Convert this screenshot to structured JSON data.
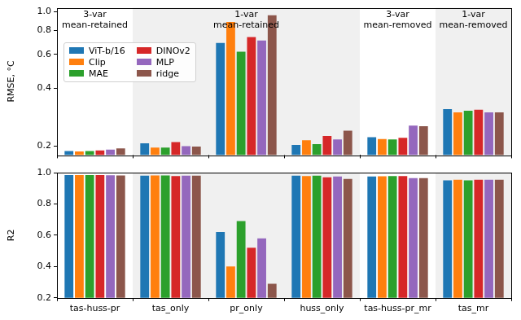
{
  "chart_data": [
    {
      "type": "bar",
      "y_label": "RMSE, °C",
      "categories": [
        "tas-huss-pr",
        "tas_only",
        "pr_only",
        "huss_only",
        "tas-huss-pr_mr",
        "tas_mr"
      ],
      "series": [
        {
          "name": "ViT-b/16",
          "color": "#1f77b4",
          "values": [
            0.189,
            0.207,
            0.69,
            0.203,
            0.223,
            0.312
          ]
        },
        {
          "name": "Clip",
          "color": "#ff7f0e",
          "values": [
            0.188,
            0.197,
            0.886,
            0.215,
            0.218,
            0.3
          ]
        },
        {
          "name": "MAE",
          "color": "#2ca02c",
          "values": [
            0.189,
            0.197,
            0.62,
            0.205,
            0.217,
            0.306
          ]
        },
        {
          "name": "DINOv2",
          "color": "#d62728",
          "values": [
            0.19,
            0.21,
            0.74,
            0.226,
            0.221,
            0.31
          ]
        },
        {
          "name": "MLP",
          "color": "#9467bd",
          "values": [
            0.192,
            0.2,
            0.71,
            0.217,
            0.256,
            0.3
          ]
        },
        {
          "name": "ridge",
          "color": "#8c564b",
          "values": [
            0.195,
            0.199,
            0.96,
            0.241,
            0.254,
            0.3
          ]
        }
      ],
      "log": "y",
      "ylim": [
        0.18,
        1.05
      ],
      "yticks": [
        0.2,
        0.4,
        0.6,
        0.8,
        {
          "value": 1,
          "label": "1.0"
        }
      ],
      "grid": false,
      "legend": "upper left",
      "tick_labels": "y",
      "annotations": [
        {
          "text": "3-var\nmean-retained",
          "categories": [
            "tas-huss-pr"
          ]
        },
        {
          "text": "1-var\nmean-retained",
          "categories": [
            "tas_only",
            "pr_only",
            "huss_only"
          ]
        },
        {
          "text": "3-var\nmean-removed",
          "categories": [
            "tas-huss-pr_mr"
          ]
        },
        {
          "text": "1-var\nmean-removed",
          "categories": [
            "tas_mr"
          ]
        }
      ]
    },
    {
      "type": "bar",
      "y_label": "R2",
      "categories": [
        "tas-huss-pr",
        "tas_only",
        "pr_only",
        "huss_only",
        "tas-huss-pr_mr",
        "tas_mr"
      ],
      "series": [
        {
          "name": "ViT-b/16",
          "color": "#1f77b4",
          "values": [
            0.985,
            0.98,
            0.62,
            0.98,
            0.975,
            0.95
          ]
        },
        {
          "name": "Clip",
          "color": "#ff7f0e",
          "values": [
            0.985,
            0.982,
            0.4,
            0.978,
            0.977,
            0.955
          ]
        },
        {
          "name": "MAE",
          "color": "#2ca02c",
          "values": [
            0.985,
            0.982,
            0.69,
            0.98,
            0.978,
            0.95
          ]
        },
        {
          "name": "DINOv2",
          "color": "#d62728",
          "values": [
            0.984,
            0.978,
            0.52,
            0.97,
            0.978,
            0.955
          ]
        },
        {
          "name": "MLP",
          "color": "#9467bd",
          "values": [
            0.983,
            0.98,
            0.58,
            0.975,
            0.965,
            0.955
          ]
        },
        {
          "name": "ridge",
          "color": "#8c564b",
          "values": [
            0.982,
            0.98,
            0.29,
            0.96,
            0.965,
            0.955
          ]
        }
      ],
      "ylim": [
        0.2,
        1.0
      ],
      "yticks": [
        0.2,
        0.4,
        0.6,
        0.8,
        {
          "value": 1,
          "label": "1.0"
        }
      ],
      "grid": false
    }
  ]
}
